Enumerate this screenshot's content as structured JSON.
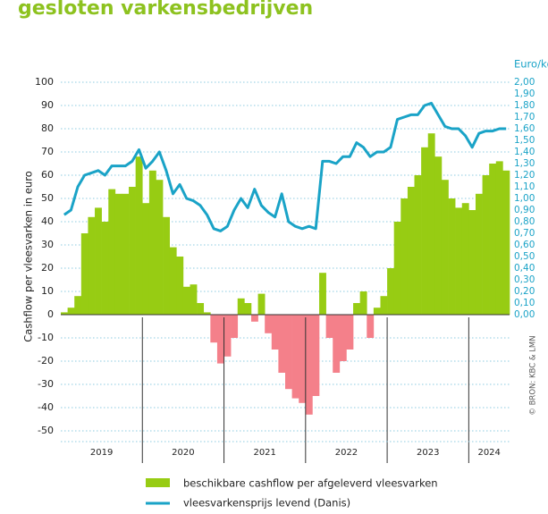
{
  "chart_data": {
    "type": "bar_line",
    "title": "gesloten varkensbedrijven",
    "y_axis_label": "Cashflow per vleesvarken in euro",
    "y2_axis_label": "Euro/kg",
    "source": "© BRON: KBC & LMN",
    "x_labels": [
      "2019",
      "2020",
      "2021",
      "2022",
      "2023",
      "2024"
    ],
    "ylim": [
      -50,
      100
    ],
    "yticks": [
      100,
      90,
      80,
      70,
      60,
      50,
      40,
      30,
      20,
      10,
      0,
      -10,
      -20,
      -30,
      -40,
      -50
    ],
    "y2lim": [
      -1,
      2
    ],
    "y2ticks": [
      {
        "value": 2,
        "label": "2,00"
      },
      {
        "value": 1.9,
        "label": "1,90"
      },
      {
        "value": 1.8,
        "label": "1,80"
      },
      {
        "value": 1.7,
        "label": "1,70"
      },
      {
        "value": 1.6,
        "label": "1,60"
      },
      {
        "value": 1.5,
        "label": "1,50"
      },
      {
        "value": 1.4,
        "label": "1,40"
      },
      {
        "value": 1.3,
        "label": "1,30"
      },
      {
        "value": 1.2,
        "label": "1,20"
      },
      {
        "value": 1.1,
        "label": "1,10"
      },
      {
        "value": 1,
        "label": "1,00"
      },
      {
        "value": 0.9,
        "label": "0,90"
      },
      {
        "value": 0.8,
        "label": "0,80"
      },
      {
        "value": 0.7,
        "label": "0,70"
      },
      {
        "value": 0.6,
        "label": "0,60"
      },
      {
        "value": 0.5,
        "label": "0,50"
      },
      {
        "value": 0.4,
        "label": "0,40"
      },
      {
        "value": 0.3,
        "label": "0,30"
      },
      {
        "value": 0.2,
        "label": "0,20"
      },
      {
        "value": 0.1,
        "label": "0,10"
      },
      {
        "value": 0,
        "label": "0,00"
      }
    ],
    "grid": true,
    "series": [
      {
        "name": "beschikbare cashflow per afgeleverd vleesvarken",
        "type": "bar",
        "color": "#97cc13",
        "negative_color": "#f4808a",
        "values": [
          1,
          3,
          8,
          35,
          42,
          46,
          40,
          54,
          52,
          52,
          55,
          68,
          48,
          62,
          58,
          42,
          29,
          25,
          12,
          13,
          5,
          1,
          -12,
          -21,
          -18,
          -10,
          7,
          5,
          -3,
          9,
          -8,
          -15,
          -25,
          -32,
          -36,
          -38,
          -43,
          -35,
          18,
          -10,
          -25,
          -20,
          -15,
          5,
          10,
          -10,
          3,
          8,
          20,
          40,
          50,
          55,
          60,
          72,
          78,
          68,
          58,
          50,
          46,
          48,
          45,
          52,
          60,
          65,
          66,
          62
        ]
      },
      {
        "name": "vleesvarkensprijs levend (Danis)",
        "type": "line",
        "axis": "y2",
        "color": "#1aa3c7",
        "values": [
          0.86,
          0.9,
          1.1,
          1.2,
          1.22,
          1.24,
          1.2,
          1.28,
          1.28,
          1.28,
          1.32,
          1.42,
          1.26,
          1.32,
          1.4,
          1.24,
          1.04,
          1.12,
          1.0,
          0.98,
          0.94,
          0.86,
          0.74,
          0.72,
          0.76,
          0.9,
          1.0,
          0.92,
          1.08,
          0.94,
          0.88,
          0.84,
          1.04,
          0.8,
          0.76,
          0.74,
          0.76,
          0.74,
          1.32,
          1.32,
          1.3,
          1.36,
          1.36,
          1.48,
          1.44,
          1.36,
          1.4,
          1.4,
          1.44,
          1.68,
          1.7,
          1.72,
          1.72,
          1.8,
          1.82,
          1.72,
          1.62,
          1.6,
          1.6,
          1.54,
          1.44,
          1.56,
          1.58,
          1.58,
          1.6,
          1.6
        ]
      }
    ]
  }
}
